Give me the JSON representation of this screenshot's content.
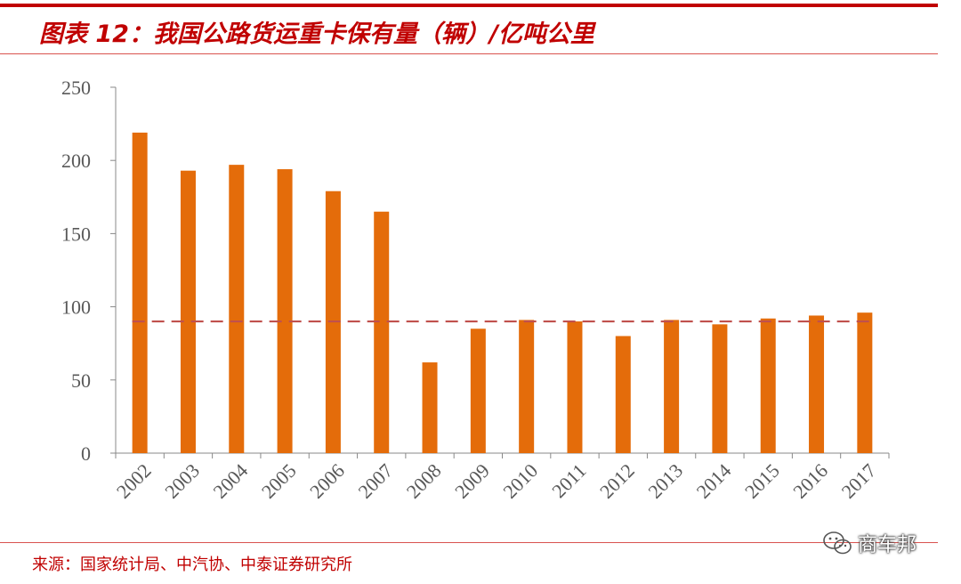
{
  "header": {
    "title": "图表 12：我国公路货运重卡保有量（辆）/亿吨公里"
  },
  "footer": {
    "source": "来源：国家统计局、中汽协、中泰证券研究所",
    "watermark_text": "商车邦",
    "watermark_icon": "wechat-icon"
  },
  "colors": {
    "bar": "#e46c0a",
    "reference_line": "#c0504d",
    "title": "#c00000",
    "axis": "#888888",
    "text": "#595959"
  },
  "chart_data": {
    "type": "bar",
    "categories": [
      "2002",
      "2003",
      "2004",
      "2005",
      "2006",
      "2007",
      "2008",
      "2009",
      "2010",
      "2011",
      "2012",
      "2013",
      "2014",
      "2015",
      "2016",
      "2017"
    ],
    "series": [
      {
        "values": [
          219,
          193,
          197,
          194,
          179,
          165,
          62,
          85,
          91,
          90,
          80,
          91,
          88,
          92,
          94,
          96
        ]
      }
    ],
    "reference_line": {
      "value": 90,
      "style": "dashed"
    },
    "ylim": [
      0,
      250
    ],
    "yticks": [
      0,
      50,
      100,
      150,
      200,
      250
    ],
    "xlabel": "",
    "ylabel": "",
    "grid": false,
    "legend": "none",
    "xtick_rotation": -45
  }
}
